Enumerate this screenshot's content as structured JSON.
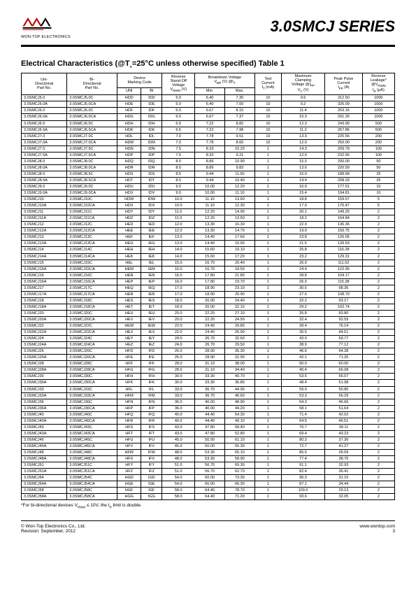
{
  "header": {
    "company": "WON-TOP ELECTRONICS",
    "series": "3.0SMCJ SERIES"
  },
  "section_title": "Electrical Characteristics (@T_A=25°C unless otherwise specified) Table 1",
  "columns": {
    "uni": "Uni-\nDirectional\nPart No.",
    "bi": "Bi-\nDirectional\nPart No.",
    "marking": "Device\nMarking Code",
    "marking_uni": "UNI",
    "marking_bi": "BI",
    "vrwm": "Reverse\nStand-Off\nVoltage\nV_RWM (V)",
    "vbr": "Breakdown Voltage\nV_BR (V) @I_T",
    "vbr_min": "Min.",
    "vbr_max": "Max.",
    "it": "Test\nCurrent\nI_T (mA)",
    "vc": "Maximum\nClamping\nVoltage @I_PP\nV_C (V)",
    "ipp": "Peak Pulse\nCurrent\nI_PP (A)",
    "ir": "Reverse\nLeakage*\n@V_RWM\nI_R (µA)"
  },
  "rows": [
    [
      "3.0SMCJ5.0",
      "3.0SMCJ5.0C",
      "HDD",
      "IDD",
      "5.0",
      "6.40",
      "7.30",
      "10",
      "9.6",
      "312.50",
      "1000",
      false
    ],
    [
      "3.0SMCJ5.0A",
      "3.0SMCJ5.0CA",
      "HDE",
      "IDE",
      "5.0",
      "6.40",
      "7.00",
      "10",
      "9.2",
      "326.09",
      "1000",
      false
    ],
    [
      "3.0SMCJ6.0",
      "3.0SMCJ6.0C",
      "HDF",
      "IDF",
      "6.0",
      "6.67",
      "8.15",
      "10",
      "11.4",
      "263.16",
      "1000",
      false
    ],
    [
      "3.0SMCJ6.0A",
      "3.0SMCJ6.0CA",
      "HDG",
      "IDG",
      "6.0",
      "6.67",
      "7.37",
      "10",
      "10.3",
      "291.26",
      "1000",
      false
    ],
    [
      "3.0SMCJ6.5",
      "3.0SMCJ6.5C",
      "HDH",
      "IDH",
      "6.5",
      "7.22",
      "8.82",
      "10",
      "12.3",
      "243.90",
      "500",
      true
    ],
    [
      "3.0SMCJ6.5A",
      "3.0SMCJ6.5CA",
      "HDK",
      "IDK",
      "6.5",
      "7.22",
      "7.98",
      "10",
      "11.2",
      "267.86",
      "500",
      false
    ],
    [
      "3.0SMCJ7.0",
      "3.0SMCJ7.0C",
      "HDL",
      "IDL",
      "7.0",
      "7.78",
      "9.51",
      "10",
      "13.3",
      "225.56",
      "200",
      false
    ],
    [
      "3.0SMCJ7.0A",
      "3.0SMCJ7.0CA",
      "HDM",
      "IDM",
      "7.0",
      "7.78",
      "8.60",
      "10",
      "12.0",
      "250.00",
      "200",
      false
    ],
    [
      "3.0SMCJ7.5",
      "3.0SMCJ7.5C",
      "HDN",
      "IDN",
      "7.5",
      "8.33",
      "10.20",
      "1",
      "14.3",
      "209.79",
      "100",
      true
    ],
    [
      "3.0SMCJ7.5A",
      "3.0SMCJ7.5CA",
      "HDP",
      "IDP",
      "7.5",
      "8.33",
      "9.21",
      "1",
      "12.9",
      "232.56",
      "100",
      false
    ],
    [
      "3.0SMCJ8.0",
      "3.0SMCJ8.0C",
      "HDQ",
      "IDQ",
      "8.0",
      "8.89",
      "10.90",
      "1",
      "15.0",
      "200.00",
      "50",
      false
    ],
    [
      "3.0SMCJ8.0A",
      "3.0SMCJ8.0CA",
      "HDR",
      "IDR",
      "8.0",
      "8.89",
      "9.83",
      "1",
      "13.6",
      "220.59",
      "50",
      false
    ],
    [
      "3.0SMCJ8.5",
      "3.0SMCJ8.5C",
      "HDS",
      "IDS",
      "8.5",
      "9.44",
      "11.50",
      "1",
      "15.9",
      "188.68",
      "25",
      true
    ],
    [
      "3.0SMCJ8.5A",
      "3.0SMCJ8.5CA",
      "HDT",
      "IDT",
      "8.5",
      "9.44",
      "10.40",
      "1",
      "14.4",
      "208.33",
      "25",
      false
    ],
    [
      "3.0SMCJ9.0",
      "3.0SMCJ9.0C",
      "HDU",
      "IDU",
      "9.0",
      "10.00",
      "12.20",
      "1",
      "16.9",
      "177.51",
      "10",
      false
    ],
    [
      "3.0SMCJ9.0A",
      "3.0SMCJ9.0CA",
      "HDV",
      "IDV",
      "9.0",
      "10.00",
      "11.10",
      "1",
      "15.4",
      "194.81",
      "10",
      false
    ],
    [
      "3.0SMCJ10",
      "3.0SMCJ10C",
      "HDW",
      "IDW",
      "10.0",
      "11.10",
      "13.60",
      "1",
      "18.8",
      "159.57",
      "5",
      true
    ],
    [
      "3.0SMCJ10A",
      "3.0SMCJ10CA",
      "HDX",
      "IDX",
      "10.0",
      "11.10",
      "12.30",
      "1",
      "17.0",
      "176.47",
      "5",
      false
    ],
    [
      "3.0SMCJ11",
      "3.0SMCJ11C",
      "HDY",
      "IDY",
      "11.0",
      "12.20",
      "14.90",
      "1",
      "20.1",
      "149.25",
      "2",
      false
    ],
    [
      "3.0SMCJ11A",
      "3.0SMCJ11CA",
      "HDZ",
      "IDZ",
      "11.0",
      "12.20",
      "13.50",
      "1",
      "18.2",
      "164.84",
      "2",
      false
    ],
    [
      "3.0SMCJ12",
      "3.0SMCJ12C",
      "HED",
      "IED",
      "12.0",
      "13.30",
      "16.30",
      "1",
      "22.0",
      "136.36",
      "2",
      true
    ],
    [
      "3.0SMCJ12A",
      "3.0SMCJ12CA",
      "HEE",
      "IEE",
      "12.0",
      "13.30",
      "14.70",
      "1",
      "19.9",
      "150.75",
      "2",
      false
    ],
    [
      "3.0SMCJ13",
      "3.0SMCJ13C",
      "HEF",
      "IEF",
      "13.0",
      "14.40",
      "17.60",
      "1",
      "23.8",
      "126.05",
      "2",
      false
    ],
    [
      "3.0SMCJ13A",
      "3.0SMCJ13CA",
      "HEG",
      "IEG",
      "13.0",
      "14.40",
      "15.90",
      "1",
      "21.5",
      "139.53",
      "2",
      false
    ],
    [
      "3.0SMCJ14",
      "3.0SMCJ14C",
      "HEH",
      "IEH",
      "14.0",
      "15.60",
      "19.10",
      "1",
      "25.8",
      "116.28",
      "2",
      true
    ],
    [
      "3.0SMCJ14A",
      "3.0SMCJ14CA",
      "HEK",
      "IEK",
      "14.0",
      "15.60",
      "17.20",
      "1",
      "23.2",
      "129.31",
      "2",
      false
    ],
    [
      "3.0SMCJ15",
      "3.0SMCJ15C",
      "HEL",
      "IEL",
      "15.0",
      "16.70",
      "20.40",
      "1",
      "26.9",
      "111.52",
      "2",
      false
    ],
    [
      "3.0SMCJ15A",
      "3.0SMCJ15CA",
      "HEM",
      "IEM",
      "15.0",
      "16.70",
      "18.50",
      "1",
      "24.4",
      "122.95",
      "2",
      false
    ],
    [
      "3.0SMCJ16",
      "3.0SMCJ16C",
      "HEN",
      "IEN",
      "16.0",
      "17.80",
      "21.80",
      "1",
      "28.8",
      "104.17",
      "2",
      true
    ],
    [
      "3.0SMCJ16A",
      "3.0SMCJ16CA",
      "HEP",
      "IEP",
      "16.0",
      "17.80",
      "19.70",
      "1",
      "26.0",
      "115.38",
      "2",
      false
    ],
    [
      "3.0SMCJ17",
      "3.0SMCJ17C",
      "HEQ",
      "IEQ",
      "17.0",
      "18.90",
      "23.10",
      "1",
      "30.5",
      "98.36",
      "2",
      false
    ],
    [
      "3.0SMCJ17A",
      "3.0SMCJ17CA",
      "HER",
      "IER",
      "17.0",
      "18.90",
      "20.90",
      "1",
      "27.6",
      "108.70",
      "2",
      false
    ],
    [
      "3.0SMCJ18",
      "3.0SMCJ18C",
      "HES",
      "IES",
      "18.0",
      "20.00",
      "24.40",
      "1",
      "32.2",
      "93.17",
      "2",
      true
    ],
    [
      "3.0SMCJ18A",
      "3.0SMCJ18CA",
      "HET",
      "IET",
      "18.0",
      "20.00",
      "22.10",
      "1",
      "29.2",
      "102.74",
      "2",
      false
    ],
    [
      "3.0SMCJ20",
      "3.0SMCJ20C",
      "HEU",
      "IEU",
      "20.0",
      "22.20",
      "27.10",
      "1",
      "35.8",
      "83.80",
      "2",
      false
    ],
    [
      "3.0SMCJ20A",
      "3.0SMCJ20CA",
      "HEV",
      "IEV",
      "20.0",
      "22.20",
      "24.50",
      "1",
      "32.4",
      "92.59",
      "2",
      false
    ],
    [
      "3.0SMCJ22",
      "3.0SMCJ22C",
      "HEW",
      "IEW",
      "22.0",
      "24.40",
      "29.80",
      "1",
      "39.4",
      "76.14",
      "2",
      true
    ],
    [
      "3.0SMCJ22A",
      "3.0SMCJ22CA",
      "HEX",
      "IEX",
      "22.0",
      "24.40",
      "26.90",
      "1",
      "35.5",
      "84.51",
      "2",
      false
    ],
    [
      "3.0SMCJ24",
      "3.0SMCJ24C",
      "HEY",
      "IEY",
      "24.0",
      "26.70",
      "32.60",
      "1",
      "43.0",
      "69.77",
      "2",
      false
    ],
    [
      "3.0SMCJ24A",
      "3.0SMCJ24CA",
      "HEZ",
      "IEZ",
      "24.0",
      "26.70",
      "29.50",
      "1",
      "38.9",
      "77.12",
      "2",
      false
    ],
    [
      "3.0SMCJ26",
      "3.0SMCJ26C",
      "HFD",
      "IFD",
      "26.0",
      "28.90",
      "35.30",
      "1",
      "46.6",
      "64.38",
      "2",
      true
    ],
    [
      "3.0SMCJ26A",
      "3.0SMCJ26CA",
      "HFE",
      "IFE",
      "26.0",
      "28.90",
      "31.90",
      "1",
      "42.1",
      "71.26",
      "2",
      false
    ],
    [
      "3.0SMCJ28",
      "3.0SMCJ28C",
      "HFF",
      "IFF",
      "28.0",
      "31.10",
      "38.00",
      "1",
      "50.0",
      "60.00",
      "2",
      false
    ],
    [
      "3.0SMCJ28A",
      "3.0SMCJ28CA",
      "HFG",
      "IFG",
      "28.0",
      "31.10",
      "34.40",
      "1",
      "45.4",
      "66.08",
      "2",
      false
    ],
    [
      "3.0SMCJ30",
      "3.0SMCJ30C",
      "HFH",
      "IFH",
      "30.0",
      "33.30",
      "40.70",
      "1",
      "53.5",
      "56.07",
      "2",
      true
    ],
    [
      "3.0SMCJ30A",
      "3.0SMCJ30CA",
      "HFK",
      "IFK",
      "30.0",
      "33.30",
      "36.80",
      "1",
      "48.4",
      "61.98",
      "2",
      false
    ],
    [
      "3.0SMCJ33",
      "3.0SMCJ33C",
      "HFL",
      "IFL",
      "33.0",
      "36.70",
      "44.90",
      "1",
      "59.0",
      "50.85",
      "2",
      false
    ],
    [
      "3.0SMCJ33A",
      "3.0SMCJ33CA",
      "HFM",
      "IFM",
      "33.0",
      "36.70",
      "40.60",
      "1",
      "53.3",
      "56.29",
      "2",
      false
    ],
    [
      "3.0SMCJ36",
      "3.0SMCJ36C",
      "HFN",
      "IFN",
      "36.0",
      "40.00",
      "48.90",
      "1",
      "64.3",
      "46.66",
      "2",
      true
    ],
    [
      "3.0SMCJ36A",
      "3.0SMCJ36CA",
      "HFP",
      "IFP",
      "36.0",
      "40.00",
      "44.20",
      "1",
      "58.1",
      "51.64",
      "2",
      false
    ],
    [
      "3.0SMCJ40",
      "3.0SMCJ40C",
      "HFQ",
      "IFQ",
      "40.0",
      "44.40",
      "54.30",
      "1",
      "71.4",
      "42.02",
      "2",
      false
    ],
    [
      "3.0SMCJ40A",
      "3.0SMCJ40CA",
      "HFR",
      "IFR",
      "40.0",
      "44.40",
      "49.10",
      "1",
      "64.5",
      "46.51",
      "2",
      false
    ],
    [
      "3.0SMCJ43",
      "3.0SMCJ43C",
      "HFS",
      "IFS",
      "43.0",
      "47.80",
      "58.40",
      "1",
      "76.7",
      "39.11",
      "2",
      true
    ],
    [
      "3.0SMCJ43A",
      "3.0SMCJ43CA",
      "HFT",
      "IFT",
      "43.0",
      "47.80",
      "52.80",
      "1",
      "69.4",
      "43.23",
      "2",
      false
    ],
    [
      "3.0SMCJ45",
      "3.0SMCJ45C",
      "HFU",
      "IFU",
      "45.0",
      "50.00",
      "61.10",
      "1",
      "80.3",
      "37.36",
      "2",
      false
    ],
    [
      "3.0SMCJ45A",
      "3.0SMCJ45CA",
      "HFV",
      "IFV",
      "45.0",
      "50.00",
      "55.30",
      "1",
      "72.7",
      "41.27",
      "2",
      false
    ],
    [
      "3.0SMCJ48",
      "3.0SMCJ48C",
      "HFW",
      "IFW",
      "48.0",
      "53.30",
      "65.10",
      "1",
      "85.5",
      "35.09",
      "2",
      true
    ],
    [
      "3.0SMCJ48A",
      "3.0SMCJ48CA",
      "HFX",
      "IFX",
      "48.0",
      "53.30",
      "58.90",
      "1",
      "77.4",
      "38.76",
      "2",
      false
    ],
    [
      "3.0SMCJ51",
      "3.0SMCJ51C",
      "HFY",
      "IFY",
      "51.0",
      "56.70",
      "69.30",
      "1",
      "91.1",
      "32.93",
      "2",
      false
    ],
    [
      "3.0SMCJ51A",
      "3.0SMCJ51CA",
      "HFZ",
      "IFZ",
      "51.0",
      "56.70",
      "62.70",
      "1",
      "82.4",
      "36.41",
      "2",
      false
    ],
    [
      "3.0SMCJ54",
      "3.0SMCJ54C",
      "HGD",
      "IGD",
      "54.0",
      "60.00",
      "73.30",
      "1",
      "96.3",
      "31.15",
      "2",
      true
    ],
    [
      "3.0SMCJ54A",
      "3.0SMCJ54CA",
      "HGE",
      "IGE",
      "54.0",
      "60.00",
      "66.30",
      "1",
      "87.1",
      "34.44",
      "2",
      false
    ],
    [
      "3.0SMCJ58",
      "3.0SMCJ58C",
      "HGF",
      "IGF",
      "58.0",
      "64.40",
      "78.70",
      "1",
      "103.0",
      "29.13",
      "2",
      false
    ],
    [
      "3.0SMCJ58A",
      "3.0SMCJ58CA",
      "HGG",
      "IGG",
      "58.0",
      "64.40",
      "71.20",
      "1",
      "93.6",
      "32.05",
      "2",
      false
    ]
  ],
  "footnote": "*For bi-directional devices V_RWM ≤ 10V, the I_R limit is double.",
  "footer": {
    "left1": "© Won-Top Electronics Co., Ltd.",
    "left2": "Revision: September, 2012",
    "right1": "www.wontop.com",
    "right2": "3"
  },
  "logo_colors": {
    "red": "#c00000",
    "black": "#000000"
  }
}
